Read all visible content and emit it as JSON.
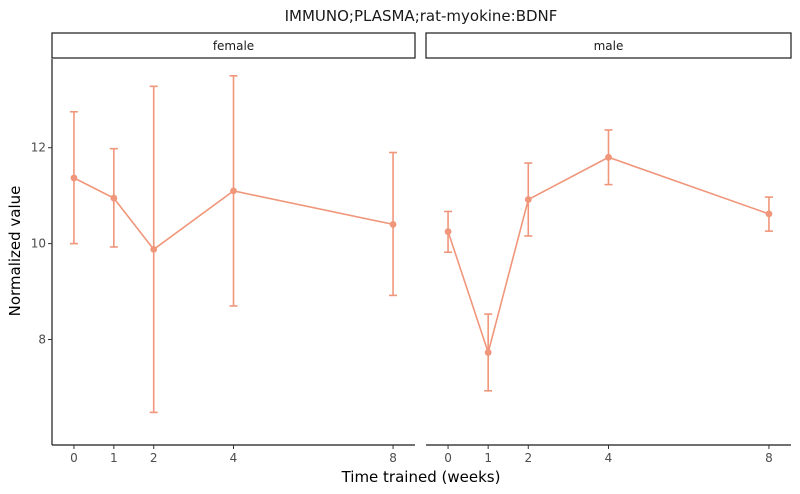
{
  "chart_data": {
    "type": "line",
    "title": "IMMUNO;PLASMA;rat-myokine:BDNF",
    "xlabel": "Time trained (weeks)",
    "ylabel": "Normalized value",
    "xlim": [
      -0.55,
      8.55
    ],
    "ylim": [
      5.8,
      13.85
    ],
    "x_ticks": [
      0,
      1,
      2,
      4,
      8
    ],
    "y_ticks": [
      8,
      10,
      12
    ],
    "grid": false,
    "color": "#F0967A",
    "panels": [
      {
        "name": "female",
        "x": [
          0,
          1,
          2,
          4,
          8
        ],
        "y": [
          11.37,
          10.95,
          9.88,
          11.1,
          10.4
        ],
        "ymin": [
          10.0,
          9.93,
          6.48,
          8.7,
          8.92
        ],
        "ymax": [
          12.75,
          11.98,
          13.28,
          13.5,
          11.9
        ]
      },
      {
        "name": "male",
        "x": [
          0,
          1,
          2,
          4,
          8
        ],
        "y": [
          10.25,
          7.73,
          10.92,
          11.8,
          10.62
        ],
        "ymin": [
          9.82,
          6.93,
          10.16,
          11.23,
          10.26
        ],
        "ymax": [
          10.67,
          8.53,
          11.68,
          12.37,
          10.97
        ]
      }
    ]
  }
}
